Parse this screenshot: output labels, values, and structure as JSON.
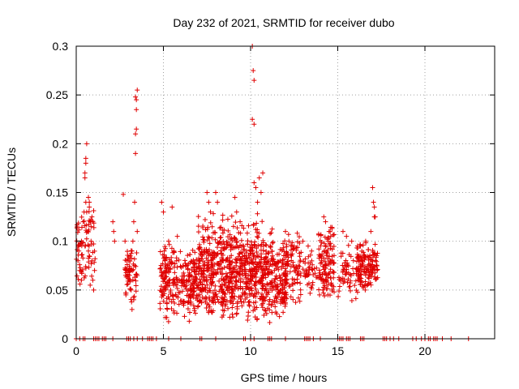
{
  "colors": {
    "series": "#e00000",
    "axis": "#000000",
    "grid": "#a0a0a0",
    "background": "#ffffff"
  },
  "chart_data": {
    "type": "scatter",
    "title": "Day 232 of 2021, SRMTID for receiver dubo",
    "xlabel": "GPS time / hours",
    "ylabel": "SRMTID / TECUs",
    "xlim": [
      0,
      24
    ],
    "ylim": [
      0,
      0.3
    ],
    "xticks": [
      0,
      5,
      10,
      15,
      20
    ],
    "yticks": [
      0,
      0.05,
      0.1,
      0.15,
      0.2,
      0.25,
      0.3
    ],
    "xtick_labels": [
      "0",
      "5",
      "10",
      "15",
      "20"
    ],
    "ytick_labels": [
      "0",
      "0.05",
      "0.1",
      "0.15",
      "0.2",
      "0.25",
      "0.3"
    ],
    "grid": true,
    "marker": "+",
    "series": [
      {
        "name": "SRMTID",
        "points": [
          [
            0.1,
            0.08
          ],
          [
            0.15,
            0.09
          ],
          [
            0.2,
            0.07
          ],
          [
            0.3,
            0.1
          ],
          [
            0.4,
            0.12
          ],
          [
            0.45,
            0.13
          ],
          [
            0.5,
            0.165
          ],
          [
            0.5,
            0.17
          ],
          [
            0.55,
            0.18
          ],
          [
            0.55,
            0.185
          ],
          [
            0.6,
            0.2
          ],
          [
            0.55,
            0.14
          ],
          [
            0.6,
            0.13
          ],
          [
            0.65,
            0.11
          ],
          [
            0.7,
            0.09
          ],
          [
            0.75,
            0.14
          ],
          [
            0.8,
            0.12
          ],
          [
            0.85,
            0.1
          ],
          [
            0.9,
            0.08
          ],
          [
            0.95,
            0.06
          ],
          [
            1.0,
            0.05
          ],
          [
            0.7,
            0.145
          ],
          [
            0.75,
            0.135
          ],
          [
            0.85,
            0.115
          ],
          [
            1.05,
            0.07
          ],
          [
            0.3,
            0.06
          ],
          [
            0.5,
            0.095
          ],
          [
            0.8,
            0.055
          ],
          [
            0.9,
            0.125
          ],
          [
            2.1,
            0.12
          ],
          [
            2.15,
            0.11
          ],
          [
            2.2,
            0.1
          ],
          [
            2.7,
            0.148
          ],
          [
            2.8,
            0.1
          ],
          [
            2.9,
            0.08
          ],
          [
            3.0,
            0.07
          ],
          [
            3.05,
            0.065
          ],
          [
            3.1,
            0.06
          ],
          [
            3.15,
            0.05
          ],
          [
            3.2,
            0.09
          ],
          [
            3.25,
            0.1
          ],
          [
            3.3,
            0.12
          ],
          [
            3.35,
            0.14
          ],
          [
            3.4,
            0.19
          ],
          [
            3.4,
            0.21
          ],
          [
            3.45,
            0.215
          ],
          [
            3.45,
            0.235
          ],
          [
            3.45,
            0.245
          ],
          [
            3.5,
            0.255
          ],
          [
            3.4,
            0.248
          ],
          [
            3.2,
            0.03
          ],
          [
            3.3,
            0.04
          ],
          [
            3.35,
            0.075
          ],
          [
            3.5,
            0.11
          ],
          [
            2.85,
            0.045
          ],
          [
            3.1,
            0.085
          ],
          [
            4.9,
            0.14
          ],
          [
            5.0,
            0.13
          ],
          [
            5.05,
            0.09
          ],
          [
            5.1,
            0.08
          ],
          [
            5.3,
            0.1
          ],
          [
            5.5,
            0.135
          ],
          [
            5.6,
            0.09
          ],
          [
            5.8,
            0.105
          ],
          [
            7.5,
            0.15
          ],
          [
            7.6,
            0.14
          ],
          [
            7.7,
            0.13
          ],
          [
            8.0,
            0.15
          ],
          [
            8.1,
            0.14
          ],
          [
            9.1,
            0.145
          ],
          [
            9.2,
            0.13
          ],
          [
            9.4,
            0.12
          ],
          [
            10.1,
            0.3
          ],
          [
            10.15,
            0.275
          ],
          [
            10.2,
            0.265
          ],
          [
            10.1,
            0.225
          ],
          [
            10.2,
            0.22
          ],
          [
            10.2,
            0.16
          ],
          [
            10.3,
            0.155
          ],
          [
            10.5,
            0.165
          ],
          [
            10.7,
            0.17
          ],
          [
            10.6,
            0.15
          ],
          [
            10.4,
            0.14
          ],
          [
            12.0,
            0.11
          ],
          [
            12.2,
            0.1
          ],
          [
            12.5,
            0.095
          ],
          [
            13.0,
            0.1
          ],
          [
            13.3,
            0.095
          ],
          [
            13.5,
            0.09
          ],
          [
            14.2,
            0.125
          ],
          [
            14.3,
            0.12
          ],
          [
            14.5,
            0.11
          ],
          [
            14.6,
            0.105
          ],
          [
            15.3,
            0.11
          ],
          [
            15.5,
            0.105
          ],
          [
            15.8,
            0.1
          ],
          [
            16.3,
            0.095
          ],
          [
            16.6,
            0.1
          ],
          [
            16.9,
            0.11
          ],
          [
            17.0,
            0.155
          ],
          [
            17.05,
            0.14
          ],
          [
            17.1,
            0.135
          ],
          [
            17.1,
            0.125
          ],
          [
            17.15,
            0.125
          ],
          [
            0.0,
            0.0
          ],
          [
            0.2,
            0.0
          ],
          [
            0.4,
            0.0
          ],
          [
            0.5,
            0.0
          ],
          [
            1.0,
            0.0
          ],
          [
            1.1,
            0.0
          ],
          [
            1.2,
            0.0
          ],
          [
            1.3,
            0.0
          ],
          [
            1.5,
            0.0
          ],
          [
            1.6,
            0.0
          ],
          [
            1.7,
            0.0
          ],
          [
            2.1,
            0.0
          ],
          [
            2.9,
            0.0
          ],
          [
            3.0,
            0.0
          ],
          [
            3.1,
            0.0
          ],
          [
            3.3,
            0.0
          ],
          [
            3.5,
            0.0
          ],
          [
            3.8,
            0.0
          ],
          [
            4.1,
            0.0
          ],
          [
            4.2,
            0.0
          ],
          [
            4.3,
            0.0
          ],
          [
            4.4,
            0.0
          ],
          [
            4.6,
            0.0
          ],
          [
            5.3,
            0.0
          ],
          [
            6.0,
            0.0
          ],
          [
            7.1,
            0.0
          ],
          [
            7.2,
            0.0
          ],
          [
            8.0,
            0.0
          ],
          [
            9.6,
            0.0
          ],
          [
            9.7,
            0.0
          ],
          [
            10.0,
            0.0
          ],
          [
            10.2,
            0.0
          ],
          [
            11.0,
            0.0
          ],
          [
            11.1,
            0.0
          ],
          [
            11.2,
            0.0
          ],
          [
            12.0,
            0.0
          ],
          [
            13.1,
            0.0
          ],
          [
            13.2,
            0.0
          ],
          [
            13.3,
            0.0
          ],
          [
            13.4,
            0.0
          ],
          [
            13.6,
            0.0
          ],
          [
            14.0,
            0.0
          ],
          [
            15.0,
            0.0
          ],
          [
            15.1,
            0.0
          ],
          [
            15.2,
            0.0
          ],
          [
            15.3,
            0.0
          ],
          [
            15.5,
            0.0
          ],
          [
            15.6,
            0.0
          ],
          [
            15.7,
            0.0
          ],
          [
            16.3,
            0.0
          ],
          [
            16.4,
            0.0
          ],
          [
            16.5,
            0.0
          ],
          [
            17.6,
            0.0
          ],
          [
            17.7,
            0.0
          ],
          [
            17.8,
            0.0
          ],
          [
            18.0,
            0.0
          ],
          [
            18.2,
            0.0
          ],
          [
            18.5,
            0.0
          ],
          [
            19.3,
            0.0
          ],
          [
            19.5,
            0.0
          ],
          [
            19.8,
            0.0
          ],
          [
            20.0,
            0.0
          ],
          [
            20.2,
            0.0
          ],
          [
            20.3,
            0.0
          ],
          [
            20.5,
            0.0
          ],
          [
            20.6,
            0.0
          ],
          [
            20.7,
            0.0
          ],
          [
            21.0,
            0.0
          ],
          [
            21.5,
            0.0
          ],
          [
            22.5,
            0.0
          ]
        ],
        "clusters": [
          {
            "x_range": [
              4.8,
              12.0
            ],
            "y_range": [
              0.015,
              0.1
            ],
            "count": 880,
            "seed": 11
          },
          {
            "x_range": [
              7.0,
              11.3
            ],
            "y_range": [
              0.05,
              0.13
            ],
            "count": 260,
            "seed": 12
          },
          {
            "x_range": [
              11.8,
              12.9
            ],
            "y_range": [
              0.03,
              0.11
            ],
            "count": 110,
            "seed": 13
          },
          {
            "x_range": [
              13.0,
              13.9
            ],
            "y_range": [
              0.045,
              0.095
            ],
            "count": 40,
            "seed": 14
          },
          {
            "x_range": [
              13.9,
              14.8
            ],
            "y_range": [
              0.035,
              0.12
            ],
            "count": 120,
            "seed": 15
          },
          {
            "x_range": [
              15.0,
              16.2
            ],
            "y_range": [
              0.035,
              0.105
            ],
            "count": 60,
            "seed": 16
          },
          {
            "x_range": [
              16.1,
              17.3
            ],
            "y_range": [
              0.045,
              0.1
            ],
            "count": 140,
            "seed": 17
          },
          {
            "x_range": [
              0.0,
              1.1
            ],
            "y_range": [
              0.05,
              0.14
            ],
            "count": 70,
            "seed": 18
          },
          {
            "x_range": [
              2.8,
              3.5
            ],
            "y_range": [
              0.03,
              0.1
            ],
            "count": 60,
            "seed": 19
          }
        ]
      }
    ]
  }
}
